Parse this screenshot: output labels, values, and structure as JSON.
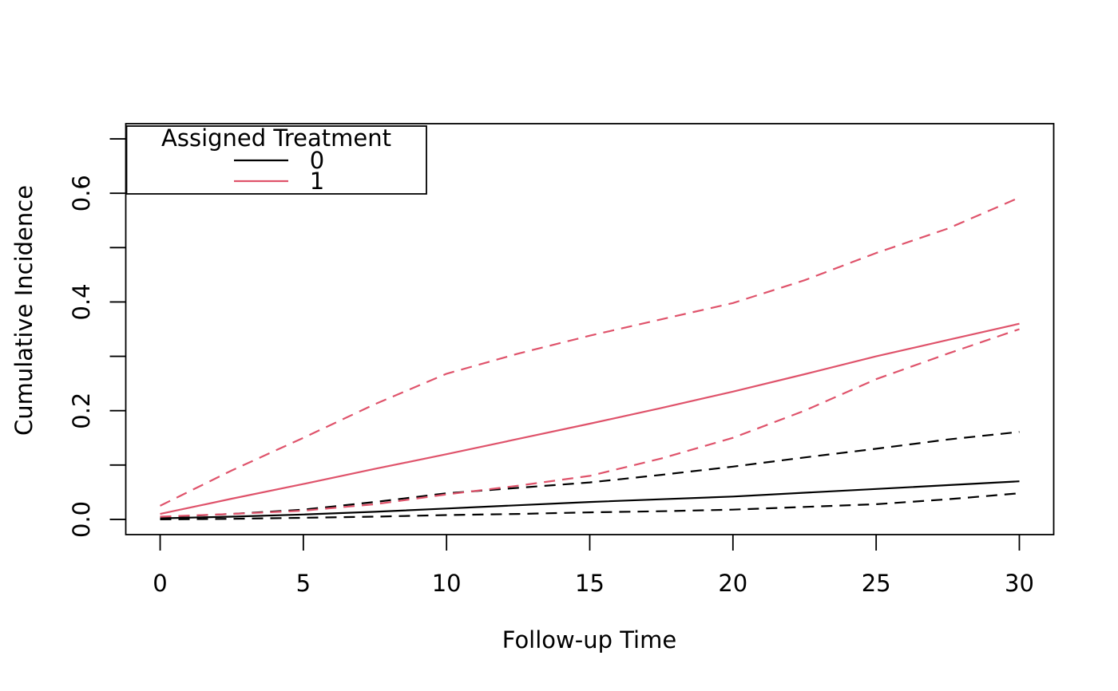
{
  "figure": {
    "kind": "r-base-plot",
    "background": "#ffffff"
  },
  "colors": {
    "treatment0": "#000000",
    "treatment1": "#DF536B",
    "axis": "#000000",
    "plot_background": "#ffffff"
  },
  "chart_data": {
    "type": "line",
    "title": "",
    "xlabel": "Follow-up Time",
    "ylabel": "Cumulative Incidence",
    "xlim": [
      0,
      30
    ],
    "ylim": [
      0,
      0.7
    ],
    "axis_padding_fraction": 0.04,
    "grid": false,
    "x_ticks": [
      0,
      5,
      10,
      15,
      20,
      25,
      30
    ],
    "x_tick_labels": [
      "0",
      "5",
      "10",
      "15",
      "20",
      "25",
      "30"
    ],
    "y_ticks": [
      0,
      0.1,
      0.2,
      0.3,
      0.4,
      0.5,
      0.6,
      0.7
    ],
    "y_tick_labels": [
      "0.0",
      "",
      "0.2",
      "",
      "0.4",
      "",
      "0.6",
      ""
    ],
    "legend": {
      "title": "Assigned Treatment",
      "position": "topleft",
      "entries": [
        {
          "label": "0",
          "color": "#000000",
          "line_style": "solid"
        },
        {
          "label": "1",
          "color": "#DF536B",
          "line_style": "solid"
        }
      ]
    },
    "x": [
      0,
      2.5,
      5,
      7.5,
      10,
      12.5,
      15,
      17.5,
      20,
      22.5,
      25,
      27.5,
      30
    ],
    "series": [
      {
        "name": "treatment-0-ci-lower",
        "group": "0",
        "color": "#000000",
        "dashed": true,
        "values": [
          0.0,
          0.001,
          0.003,
          0.005,
          0.008,
          0.01,
          0.013,
          0.015,
          0.018,
          0.023,
          0.028,
          0.037,
          0.048
        ]
      },
      {
        "name": "treatment-0-ci-upper",
        "group": "0",
        "color": "#000000",
        "dashed": true,
        "values": [
          0.004,
          0.01,
          0.018,
          0.032,
          0.048,
          0.058,
          0.068,
          0.082,
          0.097,
          0.114,
          0.13,
          0.147,
          0.161
        ]
      },
      {
        "name": "treatment-0-estimate",
        "group": "0",
        "color": "#000000",
        "dashed": false,
        "values": [
          0.002,
          0.005,
          0.009,
          0.014,
          0.02,
          0.026,
          0.032,
          0.037,
          0.042,
          0.049,
          0.056,
          0.063,
          0.07
        ]
      },
      {
        "name": "treatment-1-ci-lower",
        "group": "1",
        "color": "#DF536B",
        "dashed": true,
        "values": [
          0.005,
          0.01,
          0.016,
          0.028,
          0.046,
          0.062,
          0.08,
          0.112,
          0.15,
          0.2,
          0.258,
          0.305,
          0.35
        ]
      },
      {
        "name": "treatment-1-ci-upper",
        "group": "1",
        "color": "#DF536B",
        "dashed": true,
        "values": [
          0.025,
          0.09,
          0.15,
          0.212,
          0.268,
          0.305,
          0.338,
          0.368,
          0.398,
          0.44,
          0.49,
          0.535,
          0.592
        ]
      },
      {
        "name": "treatment-1-estimate",
        "group": "1",
        "color": "#DF536B",
        "dashed": false,
        "values": [
          0.01,
          0.038,
          0.065,
          0.093,
          0.12,
          0.148,
          0.176,
          0.205,
          0.235,
          0.267,
          0.3,
          0.33,
          0.36
        ]
      }
    ]
  },
  "layout_text": {
    "note": ""
  }
}
